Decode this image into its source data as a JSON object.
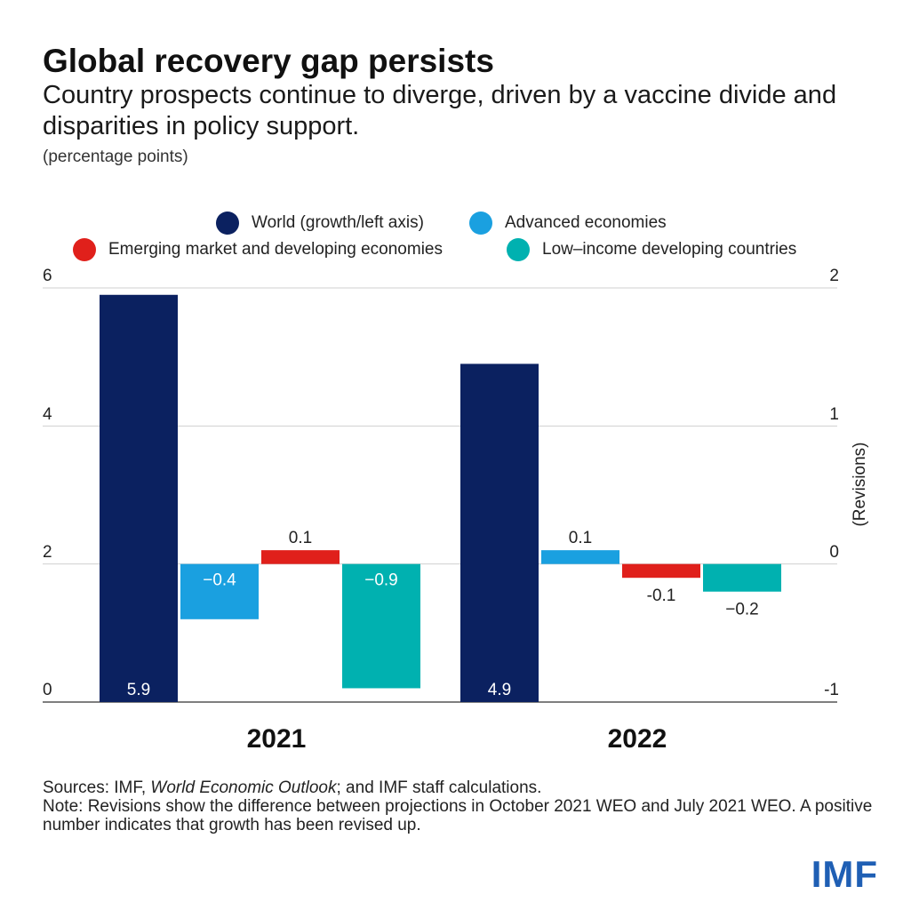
{
  "header": {
    "title": "Global recovery gap persists",
    "subtitle": "Country prospects continue to diverge, driven by a vaccine divide and disparities in policy support.",
    "unit": "(percentage points)"
  },
  "colors": {
    "world": "#0b2160",
    "advanced": "#1aa0e0",
    "emerging": "#e0201b",
    "lowincome": "#00b1b0",
    "grid": "#cfcfcf",
    "axis": "#555555",
    "logo": "#1f5fb4"
  },
  "chart_data": {
    "type": "bar",
    "categories": [
      "2021",
      "2022"
    ],
    "left_axis": {
      "label": "World (growth/left axis)",
      "ylim": [
        0,
        6
      ],
      "ticks": [
        "0",
        "2",
        "4",
        "6"
      ]
    },
    "right_axis": {
      "label": "(Revisions)",
      "ylim": [
        -1,
        2
      ],
      "ticks": [
        "-1",
        "0",
        "1",
        "2"
      ]
    },
    "series": [
      {
        "name": "World (growth/left axis)",
        "axis": "left",
        "color_key": "world",
        "values": [
          5.9,
          4.9
        ],
        "labels": [
          "5.9",
          "4.9"
        ]
      },
      {
        "name": "Advanced economies",
        "axis": "right",
        "color_key": "advanced",
        "values": [
          -0.4,
          0.1
        ],
        "labels": [
          "−0.4",
          "0.1"
        ]
      },
      {
        "name": "Emerging market and developing economies",
        "axis": "right",
        "color_key": "emerging",
        "values": [
          0.1,
          -0.1
        ],
        "labels": [
          "0.1",
          "-0.1"
        ]
      },
      {
        "name": "Low-income developing countries",
        "axis": "right",
        "color_key": "lowincome",
        "values": [
          -0.9,
          -0.2
        ],
        "labels": [
          "−0.9",
          "−0.2"
        ]
      }
    ],
    "legend": [
      "World (growth/left axis)",
      "Advanced economies",
      "Emerging market and developing economies",
      "Low–income developing countries"
    ],
    "grid": true
  },
  "footer": {
    "sources_prefix": "Sources: IMF, ",
    "sources_italic": "World Economic Outlook",
    "sources_suffix": "; and IMF staff calculations.",
    "note": "Note: Revisions show the difference between projections in October 2021 WEO and July 2021 WEO. A positive number indicates that growth has been revised up.",
    "logo": "IMF"
  }
}
